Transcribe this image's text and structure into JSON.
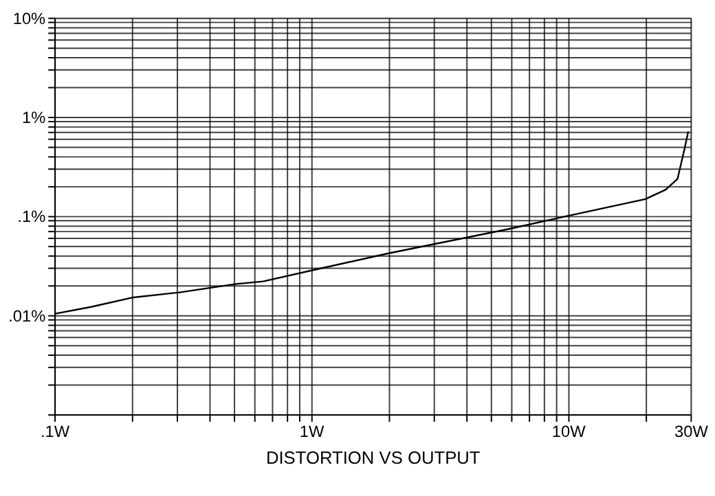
{
  "chart_data": {
    "type": "line",
    "xlabel": "DISTORTION VS OUTPUT",
    "x": [
      0.1,
      0.139,
      0.2,
      0.31,
      0.51,
      0.65,
      1.05,
      2.0,
      5.9,
      9.6,
      20,
      24,
      26.7,
      28.4,
      29.4
    ],
    "series": [
      {
        "color": "#000000",
        "values": [
          0.0103,
          0.0121,
          0.015,
          0.017,
          0.0206,
          0.0219,
          0.029,
          0.042,
          0.074,
          0.098,
          0.148,
          0.184,
          0.237,
          0.47,
          0.71
        ]
      }
    ],
    "log": "xy",
    "xlim": [
      0.1,
      30
    ],
    "ylim": [
      0.001,
      10
    ],
    "xticks": [
      {
        "value": 0.1,
        "label": ".1W"
      },
      {
        "value": 0.2,
        "label": null
      },
      {
        "value": 0.3,
        "label": null
      },
      {
        "value": 0.4,
        "label": null
      },
      {
        "value": 0.5,
        "label": null
      },
      {
        "value": 0.6,
        "label": null
      },
      {
        "value": 0.7,
        "label": null
      },
      {
        "value": 0.8,
        "label": null
      },
      {
        "value": 0.9,
        "label": null
      },
      {
        "value": 1,
        "label": "1W"
      },
      {
        "value": 2,
        "label": null
      },
      {
        "value": 3,
        "label": null
      },
      {
        "value": 4,
        "label": null
      },
      {
        "value": 5,
        "label": null
      },
      {
        "value": 6,
        "label": null
      },
      {
        "value": 7,
        "label": null
      },
      {
        "value": 8,
        "label": null
      },
      {
        "value": 9,
        "label": null
      },
      {
        "value": 10,
        "label": "10W"
      },
      {
        "value": 20,
        "label": null
      },
      {
        "value": 30,
        "label": "30W"
      }
    ],
    "yticks": [
      {
        "value": 0.001,
        "label": null
      },
      {
        "value": 0.002,
        "label": null
      },
      {
        "value": 0.003,
        "label": null
      },
      {
        "value": 0.004,
        "label": null
      },
      {
        "value": 0.005,
        "label": null
      },
      {
        "value": 0.006,
        "label": null
      },
      {
        "value": 0.007,
        "label": null
      },
      {
        "value": 0.008,
        "label": null
      },
      {
        "value": 0.009,
        "label": null
      },
      {
        "value": 0.01,
        "label": ".01%"
      },
      {
        "value": 0.02,
        "label": null
      },
      {
        "value": 0.03,
        "label": null
      },
      {
        "value": 0.04,
        "label": null
      },
      {
        "value": 0.05,
        "label": null
      },
      {
        "value": 0.06,
        "label": null
      },
      {
        "value": 0.07,
        "label": null
      },
      {
        "value": 0.08,
        "label": null
      },
      {
        "value": 0.09,
        "label": null
      },
      {
        "value": 0.1,
        "label": ".1%"
      },
      {
        "value": 0.2,
        "label": null
      },
      {
        "value": 0.3,
        "label": null
      },
      {
        "value": 0.4,
        "label": null
      },
      {
        "value": 0.5,
        "label": null
      },
      {
        "value": 0.6,
        "label": null
      },
      {
        "value": 0.7,
        "label": null
      },
      {
        "value": 0.8,
        "label": null
      },
      {
        "value": 0.9,
        "label": null
      },
      {
        "value": 1,
        "label": "1%"
      },
      {
        "value": 2,
        "label": null
      },
      {
        "value": 3,
        "label": null
      },
      {
        "value": 4,
        "label": null
      },
      {
        "value": 5,
        "label": null
      },
      {
        "value": 6,
        "label": null
      },
      {
        "value": 7,
        "label": null
      },
      {
        "value": 8,
        "label": null
      },
      {
        "value": 9,
        "label": null
      },
      {
        "value": 10,
        "label": "10%"
      }
    ],
    "grid": true,
    "marker": "none",
    "line_style": "solid"
  }
}
